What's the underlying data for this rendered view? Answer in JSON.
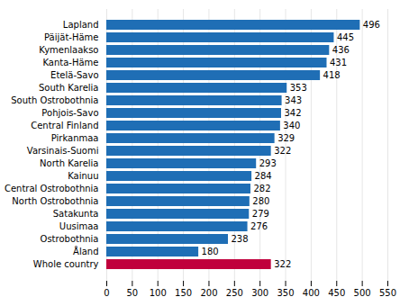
{
  "chart_data": {
    "type": "bar",
    "orientation": "horizontal",
    "categories": [
      "Whole country",
      "Åland",
      "Ostrobothnia",
      "Uusimaa",
      "Satakunta",
      "North Ostrobothnia",
      "Central Ostrobothnia",
      "Kainuu",
      "North Karelia",
      "Varsinais-Suomi",
      "Pirkanmaa",
      "Central Finland",
      "Pohjois-Savo",
      "South Ostrobothnia",
      "South Karelia",
      "Etelä-Savo",
      "Kanta-Häme",
      "Kymenlaakso",
      "Päijät-Häme",
      "Lapland"
    ],
    "values": [
      322,
      180,
      238,
      276,
      279,
      280,
      282,
      284,
      293,
      322,
      329,
      340,
      342,
      343,
      353,
      418,
      431,
      436,
      445,
      496
    ],
    "colors": [
      "#c0003c",
      "#1f6eb5",
      "#1f6eb5",
      "#1f6eb5",
      "#1f6eb5",
      "#1f6eb5",
      "#1f6eb5",
      "#1f6eb5",
      "#1f6eb5",
      "#1f6eb5",
      "#1f6eb5",
      "#1f6eb5",
      "#1f6eb5",
      "#1f6eb5",
      "#1f6eb5",
      "#1f6eb5",
      "#1f6eb5",
      "#1f6eb5",
      "#1f6eb5",
      "#1f6eb5"
    ],
    "xlim": [
      0,
      550
    ],
    "xticks": [
      0,
      50,
      100,
      150,
      200,
      250,
      300,
      350,
      400,
      450,
      500,
      550
    ],
    "grid": true,
    "data_labels": true
  }
}
